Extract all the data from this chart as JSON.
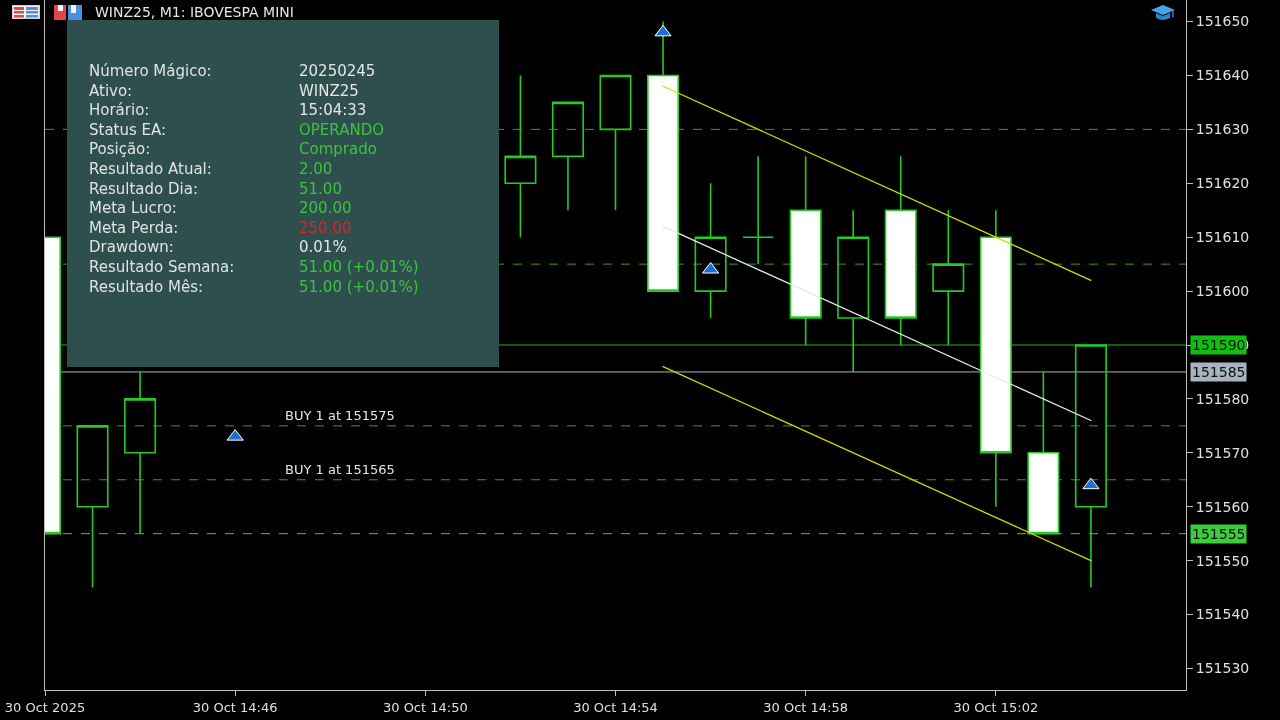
{
  "chart_data": [
    {
      "type": "candlestick",
      "title": "WINZ25, M1: IBOVESPA MINI",
      "x": [
        "2025-10-30T14:42",
        "2025-10-30T14:43",
        "2025-10-30T14:44",
        "2025-10-30T14:52",
        "2025-10-30T14:53",
        "2025-10-30T14:54",
        "2025-10-30T14:55",
        "2025-10-30T14:56",
        "2025-10-30T14:57",
        "2025-10-30T14:58",
        "2025-10-30T14:59",
        "2025-10-30T15:00",
        "2025-10-30T15:01",
        "2025-10-30T15:02",
        "2025-10-30T15:03",
        "2025-10-30T15:04"
      ],
      "ohlc": [
        [
          151610,
          151610,
          151555,
          151555
        ],
        [
          151560,
          151575,
          151545,
          151575
        ],
        [
          151570,
          151585,
          151555,
          151580
        ],
        [
          151620,
          151640,
          151610,
          151625
        ],
        [
          151625,
          151635,
          151615,
          151635
        ],
        [
          151630,
          151640,
          151615,
          151640
        ],
        [
          151640,
          151650,
          151600,
          151600
        ],
        [
          151600,
          151620,
          151595,
          151610
        ],
        [
          151610,
          151625,
          151605,
          151610
        ],
        [
          151615,
          151625,
          151590,
          151595
        ],
        [
          151595,
          151615,
          151585,
          151610
        ],
        [
          151615,
          151625,
          151590,
          151595
        ],
        [
          151600,
          151615,
          151590,
          151605
        ],
        [
          151610,
          151615,
          151560,
          151570
        ],
        [
          151570,
          151585,
          151555,
          151555
        ],
        [
          151560,
          151590,
          151545,
          151590
        ]
      ],
      "color": "#22cc22",
      "series": [
        {
          "type": "line",
          "color": "#d8d800",
          "x": [
            "2025-10-30T14:55",
            "2025-10-30T15:04"
          ],
          "values": [
            151638,
            151602
          ]
        },
        {
          "type": "line",
          "color": "#e8e8e8",
          "x": [
            "2025-10-30T14:55",
            "2025-10-30T15:04"
          ],
          "values": [
            151612,
            151576
          ]
        },
        {
          "type": "line",
          "color": "#d8d800",
          "x": [
            "2025-10-30T14:55",
            "2025-10-30T15:04"
          ],
          "values": [
            151586,
            151550
          ]
        },
        {
          "type": "scatter",
          "color": "#1f6fd1",
          "marker": "triangle",
          "x": [
            "2025-10-30T14:46",
            "2025-10-30T14:55",
            "2025-10-30T14:56",
            "2025-10-30T15:04"
          ],
          "values": [
            151573,
            151648,
            151604,
            151564
          ]
        }
      ],
      "xlim": [
        "2025-10-30T14:42",
        "2025-10-30T15:06"
      ],
      "xticks": [
        {
          "value": "2025-10-30T14:42",
          "label": "30 Oct 2025"
        },
        {
          "value": "2025-10-30T14:46",
          "label": "30 Oct 14:46"
        },
        {
          "value": "2025-10-30T14:50",
          "label": "30 Oct 14:50"
        },
        {
          "value": "2025-10-30T14:54",
          "label": "30 Oct 14:54"
        },
        {
          "value": "2025-10-30T14:58",
          "label": "30 Oct 14:58"
        },
        {
          "value": "2025-10-30T15:02",
          "label": "30 Oct 15:02"
        }
      ],
      "ylim": [
        151526,
        151654
      ],
      "yticks": [
        151530,
        151540,
        151550,
        151560,
        151570,
        151580,
        151590,
        151600,
        151610,
        151620,
        151630,
        151640,
        151650
      ],
      "grid": false,
      "ref_lines": [
        {
          "axis": "y",
          "value": 151630,
          "color": "#22aa22",
          "line_style": "dashed"
        },
        {
          "axis": "y",
          "value": 151605,
          "color": "#22aa22",
          "line_style": "dashed"
        },
        {
          "axis": "y",
          "value": 151575,
          "color": "#22aa22",
          "line_style": "dashed"
        },
        {
          "axis": "y",
          "value": 151565,
          "color": "#22aa22",
          "line_style": "dashed"
        },
        {
          "axis": "y",
          "value": 151555,
          "label": "151555",
          "color": "#3ccc3c",
          "line_style": "dashed"
        },
        {
          "axis": "y",
          "value": 151590,
          "label": "151590",
          "color": "#10c010",
          "line_style": "solid"
        },
        {
          "axis": "y",
          "value": 151585,
          "label": "151585",
          "color": "#a7b3c0",
          "line_style": "solid"
        }
      ],
      "annotations": [
        {
          "text": "BUY 1 at 151575",
          "x": "2025-10-30T14:47",
          "y": 151575
        },
        {
          "text": "BUY 1 at 151565",
          "x": "2025-10-30T14:47",
          "y": 151565
        }
      ]
    },
    {
      "type": "other",
      "annotations": [
        "Número Mágico: 20250245",
        "Ativo: WINZ25",
        "Horário: 15:04:33",
        "Status EA: OPERANDO",
        "Posição: Comprado",
        "Resultado Atual: 2.00",
        "Resultado Dia: 51.00",
        "Meta Lucro: 200.00",
        "Meta Perda: 250.00",
        "Drawdown: 0.01%",
        "Resultado Semana: 51.00 (+0.01%)",
        "Resultado Mês: 51.00 (+0.01%)"
      ]
    }
  ]
}
